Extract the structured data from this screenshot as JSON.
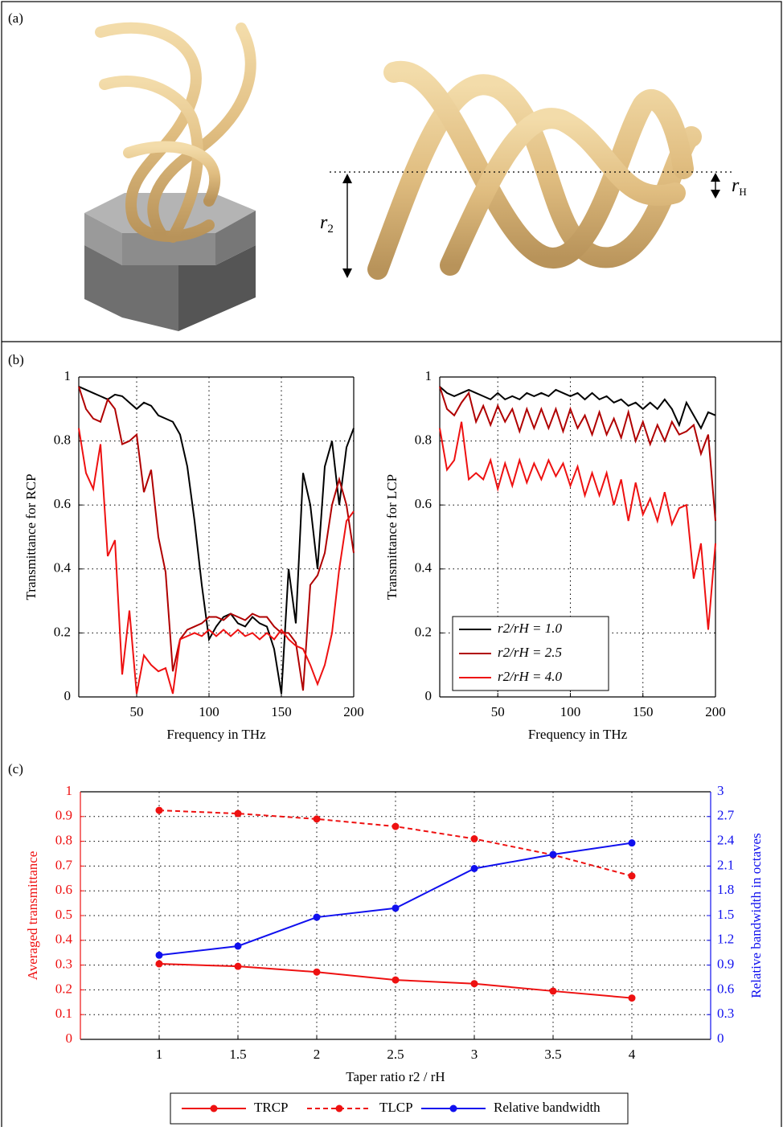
{
  "panels": [
    {
      "label": "(a)",
      "annotations": [
        {
          "symbol": "r",
          "subscript": "2"
        },
        {
          "symbol": "r",
          "subscript": "H"
        }
      ]
    },
    {
      "label": "(b)"
    },
    {
      "label": "(c)"
    }
  ],
  "chart_data": [
    {
      "type": "line",
      "xlabel": "Frequency in THz",
      "ylabel": "Transmittance for RCP",
      "x": [
        10,
        15,
        20,
        25,
        30,
        35,
        40,
        45,
        50,
        55,
        60,
        65,
        70,
        75,
        80,
        85,
        90,
        95,
        100,
        105,
        110,
        115,
        120,
        125,
        130,
        135,
        140,
        145,
        150,
        155,
        160,
        165,
        170,
        175,
        180,
        185,
        190,
        195,
        200
      ],
      "xlim": [
        10,
        200
      ],
      "ylim": [
        0,
        1
      ],
      "xticks": [
        50,
        100,
        150,
        200
      ],
      "yticks": [
        0,
        0.2,
        0.4,
        0.6,
        0.8,
        1
      ],
      "grid": true,
      "series": [
        {
          "name": "r2/rH = 1.0",
          "color": "#000000",
          "values": [
            0.97,
            0.96,
            0.95,
            0.94,
            0.93,
            0.945,
            0.94,
            0.92,
            0.9,
            0.92,
            0.91,
            0.88,
            0.87,
            0.86,
            0.82,
            0.72,
            0.55,
            0.35,
            0.18,
            0.22,
            0.25,
            0.26,
            0.23,
            0.22,
            0.25,
            0.23,
            0.22,
            0.15,
            0.01,
            0.4,
            0.23,
            0.7,
            0.6,
            0.4,
            0.72,
            0.8,
            0.6,
            0.78,
            0.84
          ]
        },
        {
          "name": "r2/rH = 2.5",
          "color": "#b00000",
          "values": [
            0.97,
            0.9,
            0.87,
            0.86,
            0.93,
            0.9,
            0.79,
            0.8,
            0.82,
            0.64,
            0.71,
            0.5,
            0.39,
            0.08,
            0.18,
            0.21,
            0.22,
            0.23,
            0.25,
            0.25,
            0.24,
            0.26,
            0.25,
            0.24,
            0.26,
            0.25,
            0.25,
            0.22,
            0.2,
            0.2,
            0.17,
            0.02,
            0.35,
            0.38,
            0.45,
            0.6,
            0.68,
            0.6,
            0.45
          ]
        },
        {
          "name": "r2/rH = 4.0",
          "color": "#ee1111",
          "values": [
            0.84,
            0.7,
            0.65,
            0.79,
            0.44,
            0.49,
            0.07,
            0.27,
            0.01,
            0.13,
            0.1,
            0.08,
            0.09,
            0.01,
            0.18,
            0.19,
            0.2,
            0.19,
            0.21,
            0.19,
            0.21,
            0.19,
            0.21,
            0.19,
            0.2,
            0.18,
            0.2,
            0.18,
            0.21,
            0.18,
            0.16,
            0.15,
            0.1,
            0.04,
            0.1,
            0.2,
            0.4,
            0.55,
            0.58
          ]
        }
      ]
    },
    {
      "type": "line",
      "xlabel": "Frequency in THz",
      "ylabel": "Transmittance for LCP",
      "x": [
        10,
        15,
        20,
        25,
        30,
        35,
        40,
        45,
        50,
        55,
        60,
        65,
        70,
        75,
        80,
        85,
        90,
        95,
        100,
        105,
        110,
        115,
        120,
        125,
        130,
        135,
        140,
        145,
        150,
        155,
        160,
        165,
        170,
        175,
        180,
        185,
        190,
        195,
        200
      ],
      "xlim": [
        10,
        200
      ],
      "ylim": [
        0,
        1
      ],
      "xticks": [
        50,
        100,
        150,
        200
      ],
      "yticks": [
        0,
        0.2,
        0.4,
        0.6,
        0.8,
        1
      ],
      "grid": true,
      "legend": "lower left",
      "series": [
        {
          "name": "r2/rH = 1.0",
          "color": "#000000",
          "values": [
            0.97,
            0.95,
            0.94,
            0.95,
            0.96,
            0.95,
            0.94,
            0.93,
            0.95,
            0.93,
            0.94,
            0.93,
            0.95,
            0.94,
            0.95,
            0.94,
            0.96,
            0.95,
            0.94,
            0.95,
            0.93,
            0.95,
            0.93,
            0.94,
            0.92,
            0.93,
            0.91,
            0.92,
            0.9,
            0.92,
            0.9,
            0.93,
            0.9,
            0.85,
            0.92,
            0.88,
            0.84,
            0.89,
            0.88
          ]
        },
        {
          "name": "r2/rH = 2.5",
          "color": "#b00000",
          "values": [
            0.97,
            0.9,
            0.88,
            0.92,
            0.95,
            0.86,
            0.91,
            0.85,
            0.91,
            0.86,
            0.9,
            0.83,
            0.9,
            0.84,
            0.9,
            0.84,
            0.9,
            0.83,
            0.9,
            0.84,
            0.88,
            0.82,
            0.89,
            0.82,
            0.87,
            0.81,
            0.89,
            0.8,
            0.86,
            0.79,
            0.85,
            0.8,
            0.86,
            0.82,
            0.83,
            0.85,
            0.76,
            0.82,
            0.55
          ]
        },
        {
          "name": "r2/rH = 4.0",
          "color": "#ee1111",
          "values": [
            0.84,
            0.71,
            0.74,
            0.86,
            0.68,
            0.7,
            0.68,
            0.74,
            0.65,
            0.73,
            0.66,
            0.74,
            0.67,
            0.73,
            0.68,
            0.74,
            0.69,
            0.73,
            0.66,
            0.72,
            0.63,
            0.7,
            0.63,
            0.7,
            0.6,
            0.68,
            0.55,
            0.67,
            0.57,
            0.62,
            0.55,
            0.64,
            0.54,
            0.59,
            0.6,
            0.37,
            0.48,
            0.21,
            0.48
          ]
        }
      ]
    },
    {
      "type": "line",
      "xlabel": "Taper ratio r2 / rH",
      "ylabel": "Averaged transmittance",
      "y2label": "Relative bandwidth in octaves",
      "x": [
        1,
        1.5,
        2,
        2.5,
        3,
        3.5,
        4
      ],
      "xlim": [
        0.5,
        4.5
      ],
      "ylim": [
        0,
        1
      ],
      "y2lim": [
        0,
        3
      ],
      "xticks": [
        1,
        1.5,
        2,
        2.5,
        3,
        3.5,
        4
      ],
      "yticks": [
        0,
        0.1,
        0.2,
        0.3,
        0.4,
        0.5,
        0.6,
        0.7,
        0.8,
        0.9,
        1
      ],
      "y2ticks": [
        0,
        0.3,
        0.6,
        0.9,
        1.2,
        1.5,
        1.8,
        2.1,
        2.4,
        2.7,
        3
      ],
      "ycolor": "#ee1111",
      "y2color": "#1010ee",
      "grid": true,
      "markers": true,
      "legend": "below",
      "series": [
        {
          "name": "TRCP",
          "color": "#ee1111",
          "linestyle": "solid",
          "values": [
            0.305,
            0.295,
            0.272,
            0.24,
            0.225,
            0.195,
            0.167
          ]
        },
        {
          "name": "TLCP",
          "color": "#ee1111",
          "linestyle": "dashed",
          "values": [
            0.925,
            0.912,
            0.89,
            0.86,
            0.81,
            0.745,
            0.66
          ]
        },
        {
          "name": "Relative bandwidth",
          "color": "#1010ee",
          "linestyle": "solid",
          "axis": "y2",
          "values": [
            1.02,
            1.13,
            1.48,
            1.59,
            2.07,
            2.24,
            2.38
          ]
        }
      ]
    }
  ]
}
